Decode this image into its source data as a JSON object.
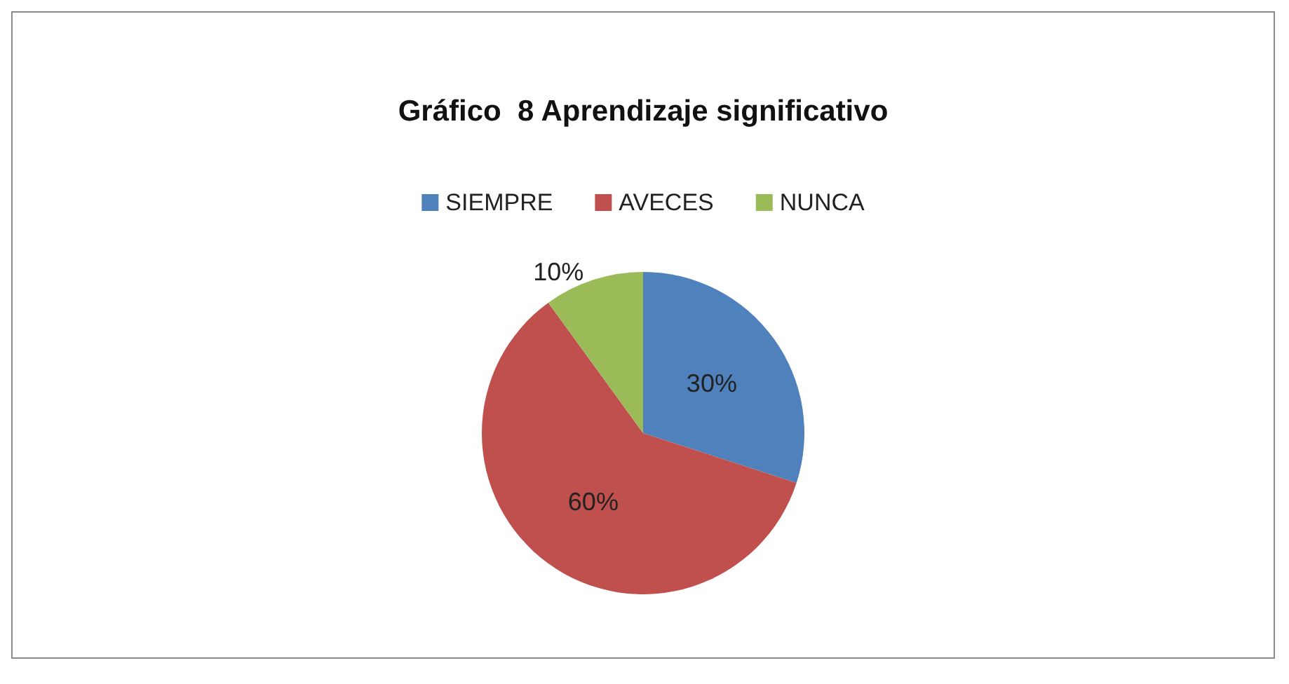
{
  "chart_data": {
    "type": "pie",
    "title": "Gráfico  8 Aprendizaje significativo",
    "categories": [
      "SIEMPRE",
      "AVECES",
      "NUNCA"
    ],
    "values": [
      30,
      60,
      10
    ],
    "colors": [
      "#4f81bd",
      "#c0504d",
      "#9bbb59"
    ],
    "value_labels": [
      "30%",
      "60%",
      "10%"
    ],
    "legend": "top"
  }
}
